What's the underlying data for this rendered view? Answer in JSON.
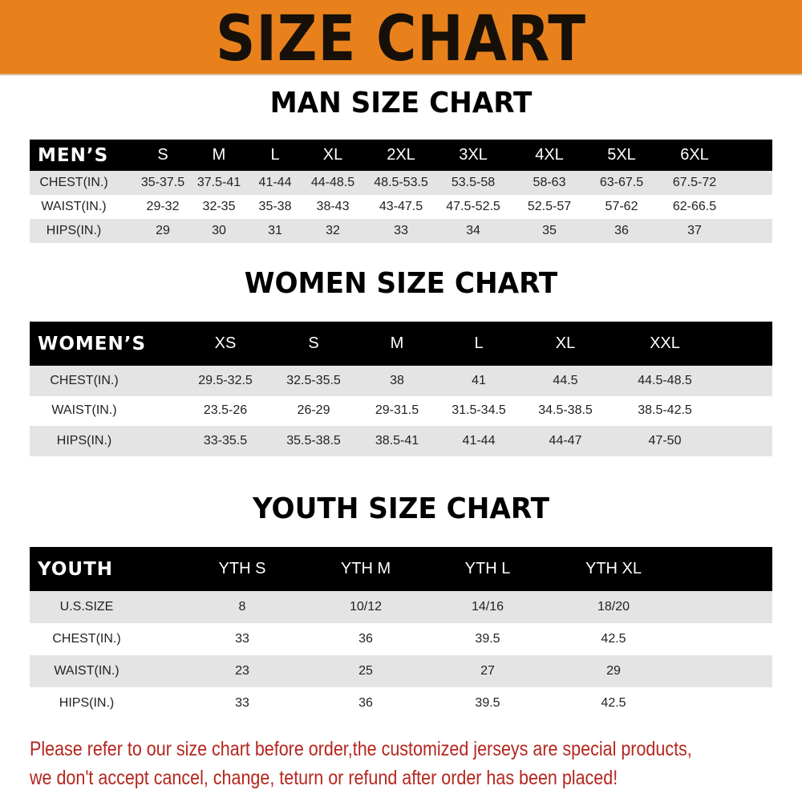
{
  "banner": {
    "title": "SIZE CHART",
    "color": "#e8811c"
  },
  "men": {
    "title": "MAN SIZE CHART",
    "header": [
      "MEN’S",
      "S",
      "M",
      "L",
      "XL",
      "2XL",
      "3XL",
      "4XL",
      "5XL",
      "6XL"
    ],
    "rows": [
      [
        "CHEST(IN.)",
        "35-37.5",
        "37.5-41",
        "41-44",
        "44-48.5",
        "48.5-53.5",
        "53.5-58",
        "58-63",
        "63-67.5",
        "67.5-72"
      ],
      [
        "WAIST(IN.)",
        "29-32",
        "32-35",
        "35-38",
        "38-43",
        "43-47.5",
        "47.5-52.5",
        "52.5-57",
        "57-62",
        "62-66.5"
      ],
      [
        "HIPS(IN.)",
        "29",
        "30",
        "31",
        "32",
        "33",
        "34",
        "35",
        "36",
        "37"
      ]
    ]
  },
  "women": {
    "title": "WOMEN SIZE CHART",
    "header": [
      "WOMEN’S",
      "XS",
      "S",
      "M",
      "L",
      "XL",
      "XXL"
    ],
    "rows": [
      [
        "CHEST(IN.)",
        "29.5-32.5",
        "32.5-35.5",
        "38",
        "41",
        "44.5",
        "44.5-48.5"
      ],
      [
        "WAIST(IN.)",
        "23.5-26",
        "26-29",
        "29-31.5",
        "31.5-34.5",
        "34.5-38.5",
        "38.5-42.5"
      ],
      [
        "HIPS(IN.)",
        "33-35.5",
        "35.5-38.5",
        "38.5-41",
        "41-44",
        "44-47",
        "47-50"
      ]
    ]
  },
  "youth": {
    "title": "YOUTH SIZE CHART",
    "header": [
      "YOUTH",
      "YTH S",
      "YTH M",
      "YTH L",
      "YTH XL"
    ],
    "rows": [
      [
        "U.S.SIZE",
        "8",
        "10/12",
        "14/16",
        "18/20"
      ],
      [
        "CHEST(IN.)",
        "33",
        "36",
        "39.5",
        "42.5"
      ],
      [
        "WAIST(IN.)",
        "23",
        "25",
        "27",
        "29"
      ],
      [
        "HIPS(IN.)",
        "33",
        "36",
        "39.5",
        "42.5"
      ]
    ]
  },
  "notice": {
    "line1": "Please refer to our size chart before order,the customized jerseys are special products,",
    "line2": "we don't accept cancel, change, teturn or refund after order has been placed!",
    "color": "#b5261e"
  }
}
